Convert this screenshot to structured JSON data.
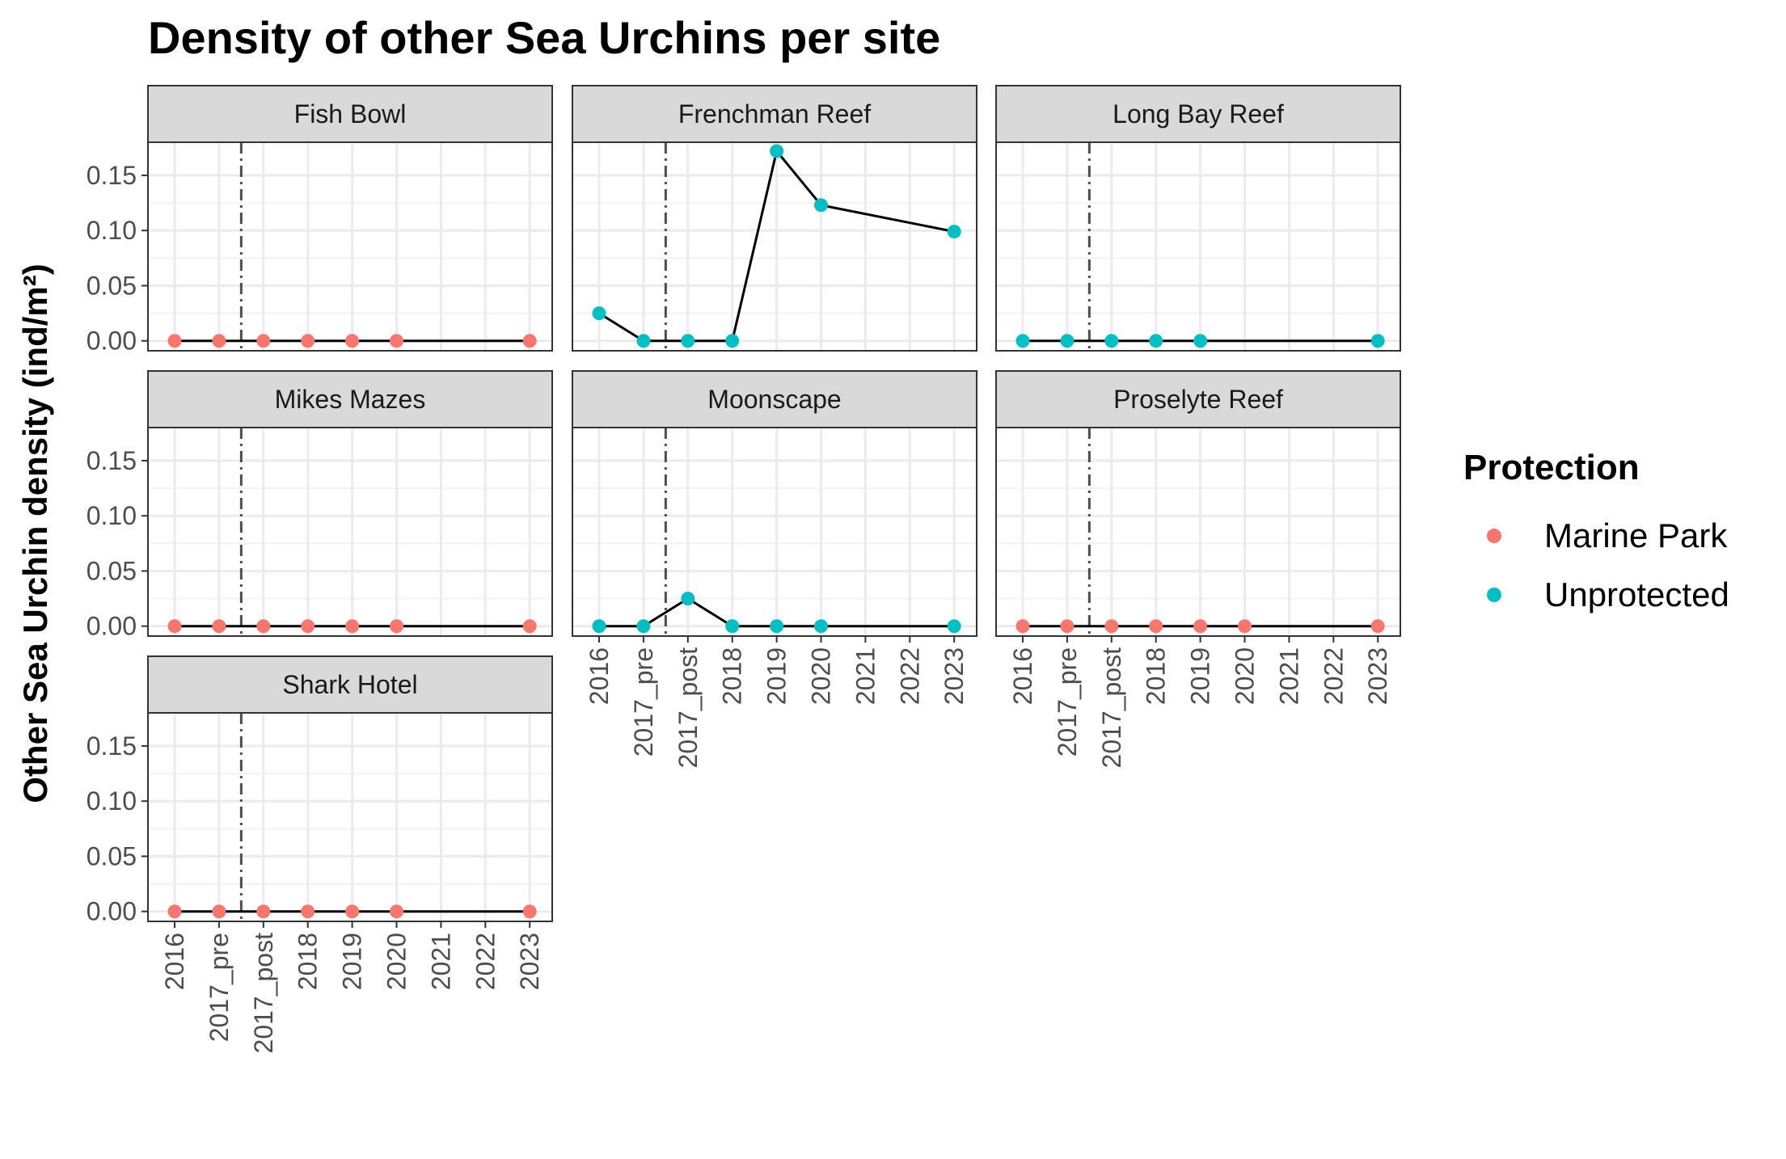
{
  "chart_data": {
    "type": "line",
    "title": "Density of other Sea Urchins per site",
    "ylabel": "Other Sea Urchin density (ind/m²)",
    "xlabel": "",
    "categories": [
      "2016",
      "2017_pre",
      "2017_post",
      "2018",
      "2019",
      "2020",
      "2021",
      "2022",
      "2023"
    ],
    "ylim": [
      -0.009,
      0.18
    ],
    "y_ticks": [
      "0.00",
      "0.05",
      "0.10",
      "0.15"
    ],
    "y_tick_values": [
      0,
      0.05,
      0.1,
      0.15
    ],
    "reference_line": {
      "between": [
        "2017_pre",
        "2017_post"
      ],
      "style": "dashdot"
    },
    "grid": true,
    "legend": {
      "title": "Protection",
      "placement": "right",
      "entries": [
        {
          "label": "Marine Park",
          "color": "#F8766D"
        },
        {
          "label": "Unprotected",
          "color": "#00BFC4"
        }
      ]
    },
    "facets": [
      {
        "site": "Fish Bowl",
        "protection": "Marine Park",
        "x": [
          "2016",
          "2017_pre",
          "2017_post",
          "2018",
          "2019",
          "2020",
          "2023"
        ],
        "y": [
          0,
          0,
          0,
          0,
          0,
          0,
          0
        ]
      },
      {
        "site": "Frenchman Reef",
        "protection": "Unprotected",
        "x": [
          "2016",
          "2017_pre",
          "2017_post",
          "2018",
          "2019",
          "2020",
          "2023"
        ],
        "y": [
          0.025,
          0,
          0,
          0,
          0.172,
          0.123,
          0.099
        ]
      },
      {
        "site": "Long Bay Reef",
        "protection": "Unprotected",
        "x": [
          "2016",
          "2017_pre",
          "2017_post",
          "2018",
          "2019",
          "2023"
        ],
        "y": [
          0,
          0,
          0,
          0,
          0,
          0
        ]
      },
      {
        "site": "Mikes Mazes",
        "protection": "Marine Park",
        "x": [
          "2016",
          "2017_pre",
          "2017_post",
          "2018",
          "2019",
          "2020",
          "2023"
        ],
        "y": [
          0,
          0,
          0,
          0,
          0,
          0,
          0
        ]
      },
      {
        "site": "Moonscape",
        "protection": "Unprotected",
        "x": [
          "2016",
          "2017_pre",
          "2017_post",
          "2018",
          "2019",
          "2020",
          "2023"
        ],
        "y": [
          0,
          0,
          0.025,
          0,
          0,
          0,
          0
        ]
      },
      {
        "site": "Proselyte Reef",
        "protection": "Marine Park",
        "x": [
          "2016",
          "2017_pre",
          "2017_post",
          "2018",
          "2019",
          "2020",
          "2023"
        ],
        "y": [
          0,
          0,
          0,
          0,
          0,
          0,
          0
        ]
      },
      {
        "site": "Shark Hotel",
        "protection": "Marine Park",
        "x": [
          "2016",
          "2017_pre",
          "2017_post",
          "2018",
          "2019",
          "2020",
          "2023"
        ],
        "y": [
          0,
          0,
          0,
          0,
          0,
          0,
          0
        ]
      }
    ]
  }
}
